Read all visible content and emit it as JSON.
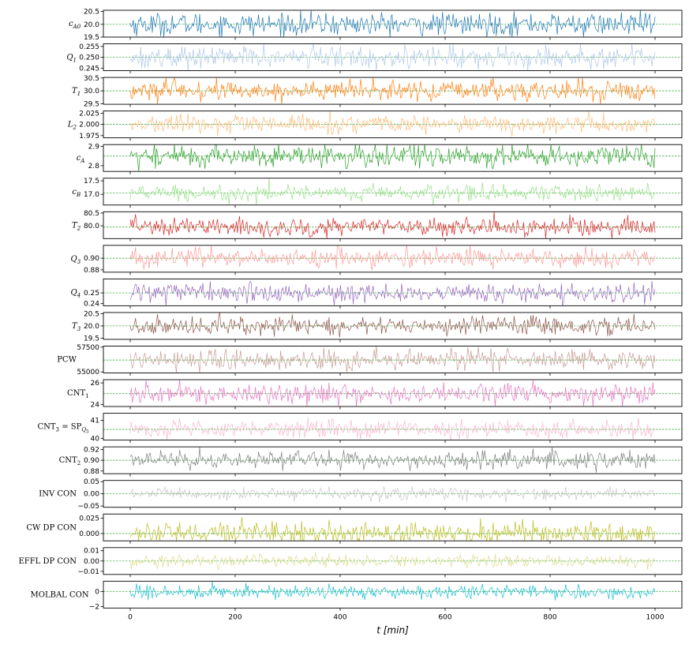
{
  "chart_data": {
    "type": "line",
    "xlabel": "t [min]",
    "xlim": [
      0,
      1000
    ],
    "xticks": [
      "0",
      "200",
      "400",
      "600",
      "800",
      "1000"
    ],
    "x_start": 0,
    "x_end": 1000,
    "n_points": 500,
    "reference_line_color": "#2ca02c",
    "series": [
      {
        "name": "c_A0",
        "ylabel": "c_{A0}",
        "color": "#1f77b4",
        "mean": 20.0,
        "amplitude": 0.22,
        "ylim": [
          19.5,
          20.55
        ],
        "yticks": [
          19.5,
          20.0,
          20.5
        ],
        "ytick_labels": [
          "19.5",
          "20.0",
          "20.5"
        ]
      },
      {
        "name": "Q_1",
        "ylabel": "Q_1",
        "color": "#aec7e8",
        "mean": 0.25,
        "amplitude": 0.0025,
        "ylim": [
          0.2438,
          0.2562
        ],
        "yticks": [
          0.245,
          0.25,
          0.255
        ],
        "ytick_labels": [
          "0.245",
          "0.250",
          "0.255"
        ]
      },
      {
        "name": "T_1",
        "ylabel": "T_1",
        "color": "#ff7f0e",
        "mean": 30.0,
        "amplitude": 0.2,
        "ylim": [
          29.48,
          30.52
        ],
        "yticks": [
          29.5,
          30.0,
          30.5
        ],
        "ytick_labels": [
          "29.5",
          "30.0",
          "30.5"
        ]
      },
      {
        "name": "L_2",
        "ylabel": "L_2",
        "color": "#ffbb78",
        "mean": 2.0,
        "amplitude": 0.01,
        "ylim": [
          1.97,
          2.03
        ],
        "yticks": [
          1.975,
          2.0,
          2.025
        ],
        "ytick_labels": [
          "1.975",
          "2.000",
          "2.025"
        ]
      },
      {
        "name": "c_A",
        "ylabel": "c_A",
        "color": "#2ca02c",
        "mean": 2.85,
        "amplitude": 0.03,
        "ylim": [
          2.77,
          2.91
        ],
        "yticks": [
          2.8,
          2.9
        ],
        "ytick_labels": [
          "2.8",
          "2.9"
        ]
      },
      {
        "name": "c_B",
        "ylabel": "c_B",
        "color": "#98df8a",
        "mean": 17.05,
        "amplitude": 0.15,
        "ylim": [
          16.6,
          17.6
        ],
        "yticks": [
          17.0,
          17.5
        ],
        "ytick_labels": [
          "17.0",
          "17.5"
        ]
      },
      {
        "name": "T_2",
        "ylabel": "T_2",
        "color": "#d62728",
        "mean": 79.95,
        "amplitude": 0.18,
        "ylim": [
          79.5,
          80.55
        ],
        "yticks": [
          80.0,
          80.5
        ],
        "ytick_labels": [
          "80.0",
          "80.5"
        ]
      },
      {
        "name": "Q_3",
        "ylabel": "Q_3",
        "color": "#ff9896",
        "mean": 0.9,
        "amplitude": 0.008,
        "ylim": [
          0.876,
          0.922
        ],
        "yticks": [
          0.88,
          0.9
        ],
        "ytick_labels": [
          "0.88",
          "0.90"
        ]
      },
      {
        "name": "Q_4",
        "ylabel": "Q_4",
        "color": "#9467bd",
        "mean": 0.25,
        "amplitude": 0.004,
        "ylim": [
          0.238,
          0.263
        ],
        "yticks": [
          0.24,
          0.25
        ],
        "ytick_labels": [
          "0.24",
          "0.25"
        ]
      },
      {
        "name": "T_3",
        "ylabel": "T_3",
        "color": "#8c564b",
        "mean": 20.0,
        "amplitude": 0.18,
        "ylim": [
          19.45,
          20.55
        ],
        "yticks": [
          19.5,
          20.0,
          20.5
        ],
        "ytick_labels": [
          "19.5",
          "20.0",
          "20.5"
        ]
      },
      {
        "name": "PCW",
        "ylabel": "PCW",
        "color": "#c49c94",
        "mean": 56200,
        "amplitude": 500,
        "ylim": [
          54900,
          57600
        ],
        "yticks": [
          55000,
          57500
        ],
        "ytick_labels": [
          "55000",
          "57500"
        ]
      },
      {
        "name": "CNT_1",
        "ylabel": "CNT_1",
        "color": "#e377c2",
        "mean": 25.0,
        "amplitude": 0.45,
        "ylim": [
          23.8,
          26.3
        ],
        "yticks": [
          24,
          26
        ],
        "ytick_labels": [
          "24",
          "26"
        ]
      },
      {
        "name": "CNT_3",
        "ylabel": "CNT_3 = SP_{Q_5}",
        "color": "#f7b6d2",
        "mean": 40.5,
        "amplitude": 0.25,
        "ylim": [
          39.9,
          41.4
        ],
        "yticks": [
          40,
          41
        ],
        "ytick_labels": [
          "40",
          "41"
        ]
      },
      {
        "name": "CNT_2",
        "ylabel": "CNT_2",
        "color": "#7f7f7f",
        "mean": 0.9,
        "amplitude": 0.008,
        "ylim": [
          0.875,
          0.925
        ],
        "yticks": [
          0.88,
          0.9,
          0.92
        ],
        "ytick_labels": [
          "0.88",
          "0.90",
          "0.92"
        ]
      },
      {
        "name": "INV CON",
        "ylabel": "INV CON",
        "color": "#c7c7c7",
        "mean": 0.0,
        "amplitude": 0.012,
        "ylim": [
          -0.055,
          0.055
        ],
        "yticks": [
          -0.05,
          0.0,
          0.05
        ],
        "ytick_labels": [
          "−0.05",
          "0.00",
          "0.05"
        ]
      },
      {
        "name": "CW DP CON",
        "ylabel": "CW DP CON",
        "color": "#bcbd22",
        "mean": 0.0,
        "amplitude": 0.009,
        "ylim": [
          -0.012,
          0.032
        ],
        "yticks": [
          0.0,
          0.025
        ],
        "ytick_labels": [
          "0.000",
          "0.025"
        ]
      },
      {
        "name": "EFFL DP CON",
        "ylabel": "EFFL DP CON",
        "color": "#dbdb8d",
        "mean": 0.0,
        "amplitude": 0.003,
        "ylim": [
          -0.013,
          0.013
        ],
        "yticks": [
          -0.01,
          0.0,
          0.01
        ],
        "ytick_labels": [
          "−0.01",
          "0.00",
          "0.01"
        ]
      },
      {
        "name": "MOLBAL CON",
        "ylabel": "MOLBAL CON",
        "color": "#17becf",
        "mean": 0.0,
        "amplitude": 0.45,
        "ylim": [
          -2.2,
          1.4
        ],
        "yticks": [
          -2,
          0
        ],
        "ytick_labels": [
          "−2",
          "0"
        ]
      }
    ]
  }
}
